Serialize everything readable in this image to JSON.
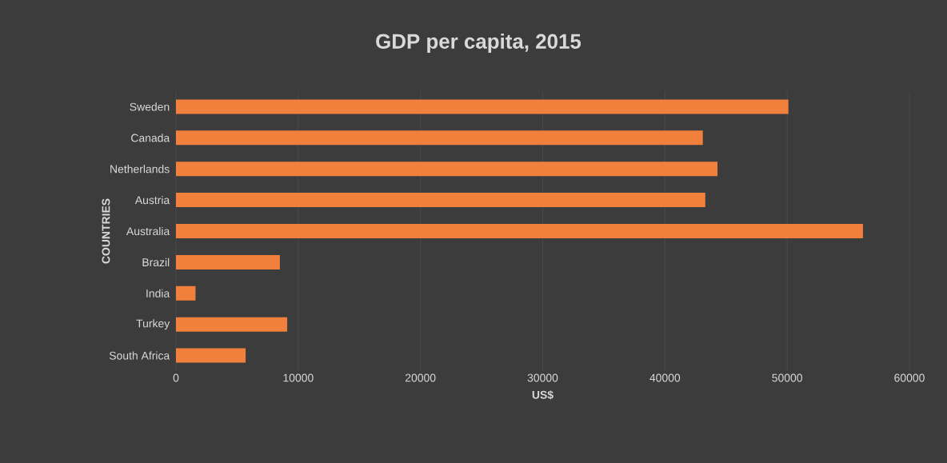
{
  "chart_data": {
    "type": "bar",
    "orientation": "horizontal",
    "title": "GDP per capita, 2015",
    "xlabel": "US$",
    "ylabel": "COUNTRIES",
    "categories": [
      "Sweden",
      "Canada",
      "Netherlands",
      "Austria",
      "Australia",
      "Brazil",
      "India",
      "Turkey",
      "South Africa"
    ],
    "values": [
      50100,
      43100,
      44300,
      43300,
      56200,
      8500,
      1600,
      9100,
      5700
    ],
    "color": "#f0803c",
    "xlim": [
      0,
      60000
    ],
    "xticks": [
      0,
      10000,
      20000,
      30000,
      40000,
      50000,
      60000
    ],
    "grid": "x"
  }
}
